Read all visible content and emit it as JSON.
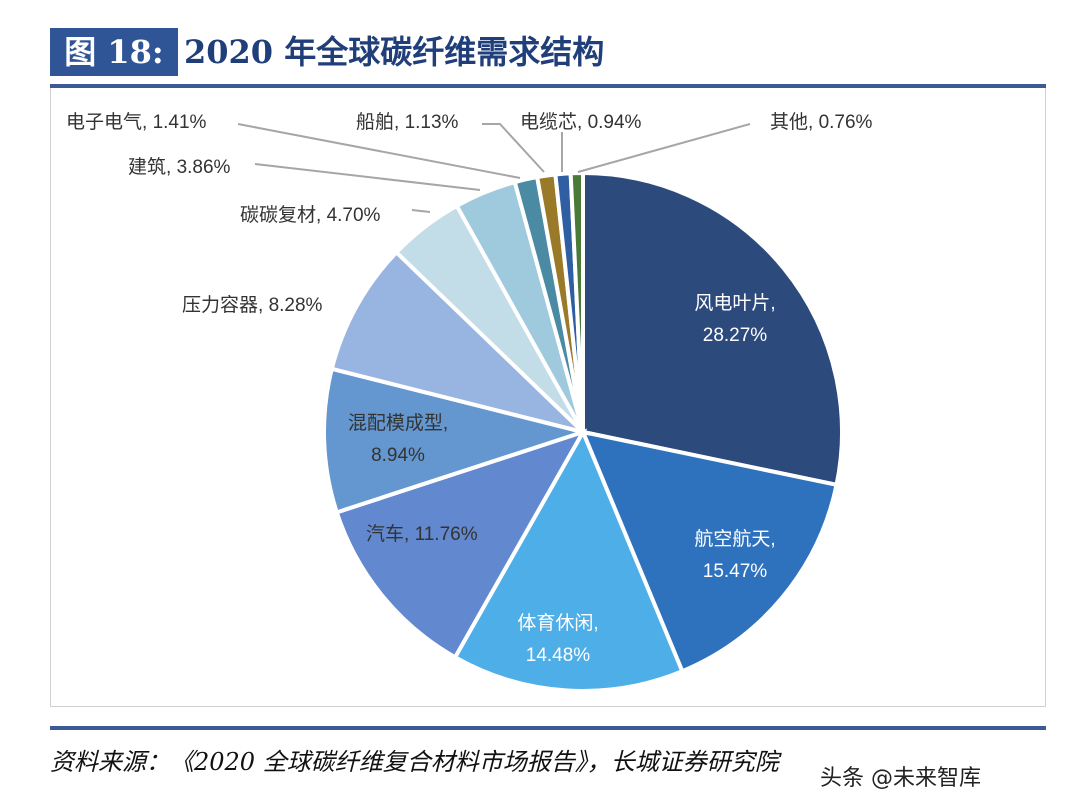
{
  "header": {
    "figure_no": "图 18:",
    "title": "2020 年全球碳纤维需求结构"
  },
  "source": "资料来源：《2020 全球碳纤维复合材料市场报告》，长城证券研究院",
  "watermark": "头条 @未来智库",
  "chart_data": {
    "type": "pie",
    "title": "2020 年全球碳纤维需求结构",
    "unit": "%",
    "start": "12 o'clock, clockwise",
    "slices": [
      {
        "name": "风电叶片",
        "value": 28.27,
        "label": "28.27%",
        "color": "#2c4a7c"
      },
      {
        "name": "航空航天",
        "value": 15.47,
        "label": "15.47%",
        "color": "#2e72be"
      },
      {
        "name": "体育休闲",
        "value": 14.48,
        "label": "14.48%",
        "color": "#4eaee8"
      },
      {
        "name": "汽车",
        "value": 11.76,
        "label": "11.76%",
        "color": "#6288cf"
      },
      {
        "name": "混配模成型",
        "value": 8.94,
        "label": "8.94%",
        "color": "#6497cf"
      },
      {
        "name": "压力容器",
        "value": 8.28,
        "label": "8.28%",
        "color": "#98b4e0"
      },
      {
        "name": "碳碳复材",
        "value": 4.7,
        "label": "4.70%",
        "color": "#c2dce8"
      },
      {
        "name": "建筑",
        "value": 3.86,
        "label": "3.86%",
        "color": "#9fcadd"
      },
      {
        "name": "电子电气",
        "value": 1.41,
        "label": "1.41%",
        "color": "#4a8aa2"
      },
      {
        "name": "船舶",
        "value": 1.13,
        "label": "1.13%",
        "color": "#9a7a28"
      },
      {
        "name": "电缆芯",
        "value": 0.94,
        "label": "0.94%",
        "color": "#2f5fa2"
      },
      {
        "name": "其他",
        "value": 0.76,
        "label": "0.76%",
        "color": "#4a7a38"
      }
    ]
  }
}
